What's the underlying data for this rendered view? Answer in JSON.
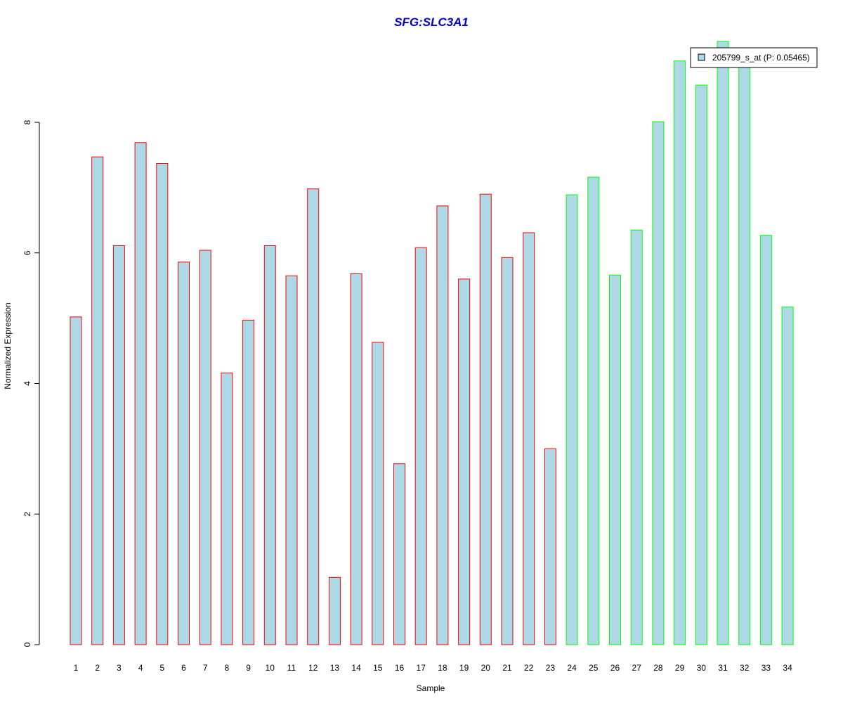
{
  "chart_data": {
    "type": "bar",
    "title": "SFG:SLC3A1",
    "xlabel": "Sample",
    "ylabel": "Normalized Expression",
    "categories": [
      "1",
      "2",
      "3",
      "4",
      "5",
      "6",
      "7",
      "8",
      "9",
      "10",
      "11",
      "12",
      "13",
      "14",
      "15",
      "16",
      "17",
      "18",
      "19",
      "20",
      "21",
      "22",
      "23",
      "24",
      "25",
      "26",
      "27",
      "28",
      "29",
      "30",
      "31",
      "32",
      "33",
      "34"
    ],
    "series": [
      {
        "name": "205799_s_at (P: 0.05465)",
        "values": [
          5.02,
          7.47,
          6.11,
          7.69,
          7.37,
          5.86,
          6.04,
          4.16,
          4.97,
          6.11,
          5.65,
          6.98,
          1.03,
          5.68,
          4.63,
          2.77,
          6.08,
          6.72,
          5.6,
          6.9,
          5.93,
          6.31,
          3.0,
          6.89,
          7.16,
          5.66,
          6.35,
          8.01,
          8.94,
          8.57,
          9.24,
          8.9,
          6.27,
          5.17
        ]
      }
    ],
    "groups": [
      {
        "from": 1,
        "to": 23,
        "border_color": "#ff0000"
      },
      {
        "from": 24,
        "to": 34,
        "border_color": "#00ff00"
      }
    ],
    "yticks": [
      0,
      2,
      4,
      6,
      8
    ],
    "ylim": [
      0,
      9.24
    ],
    "grid": false,
    "legend_position": "top-right",
    "bar_fill_color": "#add8e6",
    "title_color": "#0000cc"
  }
}
